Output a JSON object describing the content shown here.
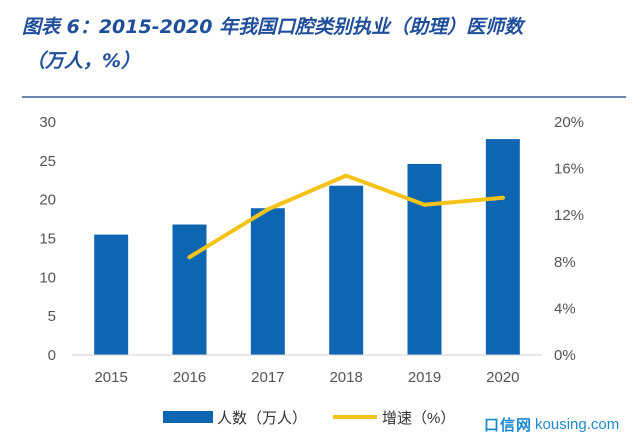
{
  "header": {
    "title_line1": "图表 6：2015-2020 年我国口腔类别执业（助理）医师数",
    "title_line2": "（万人，%）"
  },
  "watermark": {
    "logo": "口信网",
    "site": "kousing.com"
  },
  "colors": {
    "bar": "#0e66b3",
    "line": "#f5c318",
    "title": "#1f4f9b"
  },
  "chart_data": {
    "type": "bar",
    "title": "图表 6：2015-2020 年我国口腔类别执业（助理）医师数（万人，%）",
    "categories": [
      "2015",
      "2016",
      "2017",
      "2018",
      "2019",
      "2020"
    ],
    "series": [
      {
        "name": "人数（万人）",
        "type": "bar",
        "axis": "left",
        "values": [
          15.5,
          16.8,
          18.9,
          21.8,
          24.6,
          27.8
        ]
      },
      {
        "name": "增速（%）",
        "type": "line",
        "axis": "right",
        "values": [
          null,
          8.4,
          12.5,
          15.4,
          12.9,
          13.5
        ]
      }
    ],
    "ylim": [
      0,
      30
    ],
    "y_ticks": [
      "0",
      "5",
      "10",
      "15",
      "20",
      "25",
      "30"
    ],
    "y2lim": [
      0,
      20
    ],
    "y2_ticks": [
      "0%",
      "4%",
      "8%",
      "12%",
      "16%",
      "20%"
    ],
    "y2_tick_values": [
      0,
      4,
      8,
      12,
      16,
      20
    ],
    "xlabel": "",
    "ylabel": "",
    "grid": false,
    "legend": {
      "position": "bottom",
      "entries": [
        "人数（万人）",
        "增速（%）"
      ]
    }
  }
}
